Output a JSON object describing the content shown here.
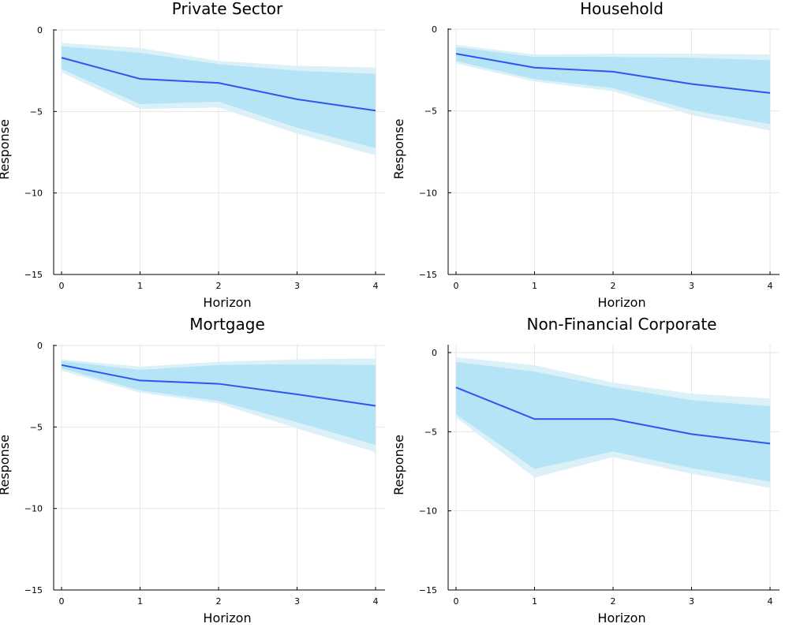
{
  "colors": {
    "band_outer": "#dcf0f8",
    "band_inner": "#b4e4f6",
    "line": "#2f55f0"
  },
  "chart_data": [
    {
      "type": "line",
      "title": "Private Sector",
      "xlabel": "Horizon",
      "ylabel": "Response",
      "xlim": [
        0,
        4
      ],
      "ylim": [
        -15,
        0
      ],
      "xticks": [
        0,
        1,
        2,
        3,
        4
      ],
      "yticks": [
        0,
        -5,
        -10,
        -15
      ],
      "grid": true,
      "x": [
        0,
        1,
        2,
        3,
        4
      ],
      "y": [
        -1.7,
        -3.0,
        -3.25,
        -4.25,
        -4.95
      ],
      "band_inner": {
        "upper": [
          -1.0,
          -1.4,
          -2.1,
          -2.5,
          -2.7
        ],
        "lower": [
          -2.4,
          -4.55,
          -4.4,
          -6.0,
          -7.25
        ]
      },
      "band_outer": {
        "upper": [
          -0.8,
          -1.1,
          -1.9,
          -2.2,
          -2.3
        ],
        "lower": [
          -2.6,
          -4.85,
          -4.75,
          -6.35,
          -7.7
        ]
      }
    },
    {
      "type": "line",
      "title": "Household",
      "xlabel": "Horizon",
      "ylabel": "Response",
      "xlim": [
        0,
        4
      ],
      "ylim": [
        -15,
        0
      ],
      "xticks": [
        0,
        1,
        2,
        3,
        4
      ],
      "yticks": [
        0,
        -5,
        -10,
        -15
      ],
      "grid": true,
      "x": [
        0,
        1,
        2,
        3,
        4
      ],
      "y": [
        -1.5,
        -2.35,
        -2.6,
        -3.35,
        -3.9
      ],
      "band_inner": {
        "upper": [
          -1.1,
          -1.7,
          -1.7,
          -1.75,
          -1.9
        ],
        "lower": [
          -1.95,
          -3.05,
          -3.6,
          -4.95,
          -5.8
        ]
      },
      "band_outer": {
        "upper": [
          -0.95,
          -1.55,
          -1.5,
          -1.5,
          -1.55
        ],
        "lower": [
          -2.1,
          -3.2,
          -3.8,
          -5.25,
          -6.2
        ]
      }
    },
    {
      "type": "line",
      "title": "Mortgage",
      "xlabel": "Horizon",
      "ylabel": "Response",
      "xlim": [
        0,
        4
      ],
      "ylim": [
        -15,
        0
      ],
      "xticks": [
        0,
        1,
        2,
        3,
        4
      ],
      "yticks": [
        0,
        -5,
        -10,
        -15
      ],
      "grid": true,
      "x": [
        0,
        1,
        2,
        3,
        4
      ],
      "y": [
        -1.2,
        -2.15,
        -2.35,
        -3.0,
        -3.7
      ],
      "band_inner": {
        "upper": [
          -0.95,
          -1.5,
          -1.2,
          -1.15,
          -1.2
        ],
        "lower": [
          -1.4,
          -2.75,
          -3.4,
          -4.7,
          -6.1
        ]
      },
      "band_outer": {
        "upper": [
          -0.85,
          -1.3,
          -1.0,
          -0.85,
          -0.8
        ],
        "lower": [
          -1.55,
          -2.9,
          -3.55,
          -5.1,
          -6.55
        ]
      }
    },
    {
      "type": "line",
      "title": "Non-Financial Corporate",
      "xlabel": "Horizon",
      "ylabel": "Response",
      "xlim": [
        0,
        4
      ],
      "ylim": [
        -15,
        0
      ],
      "xticks": [
        0,
        1,
        2,
        3,
        4
      ],
      "yticks": [
        0,
        -5,
        -10,
        -15
      ],
      "grid": true,
      "x": [
        0,
        1,
        2,
        3,
        4
      ],
      "y": [
        -2.2,
        -4.2,
        -4.2,
        -5.15,
        -5.75
      ],
      "band_inner": {
        "upper": [
          -0.6,
          -1.2,
          -2.2,
          -3.0,
          -3.4
        ],
        "lower": [
          -3.9,
          -7.35,
          -6.25,
          -7.3,
          -8.15
        ]
      },
      "band_outer": {
        "upper": [
          -0.3,
          -0.8,
          -1.9,
          -2.6,
          -2.9
        ],
        "lower": [
          -4.1,
          -7.9,
          -6.6,
          -7.65,
          -8.55
        ]
      }
    }
  ]
}
